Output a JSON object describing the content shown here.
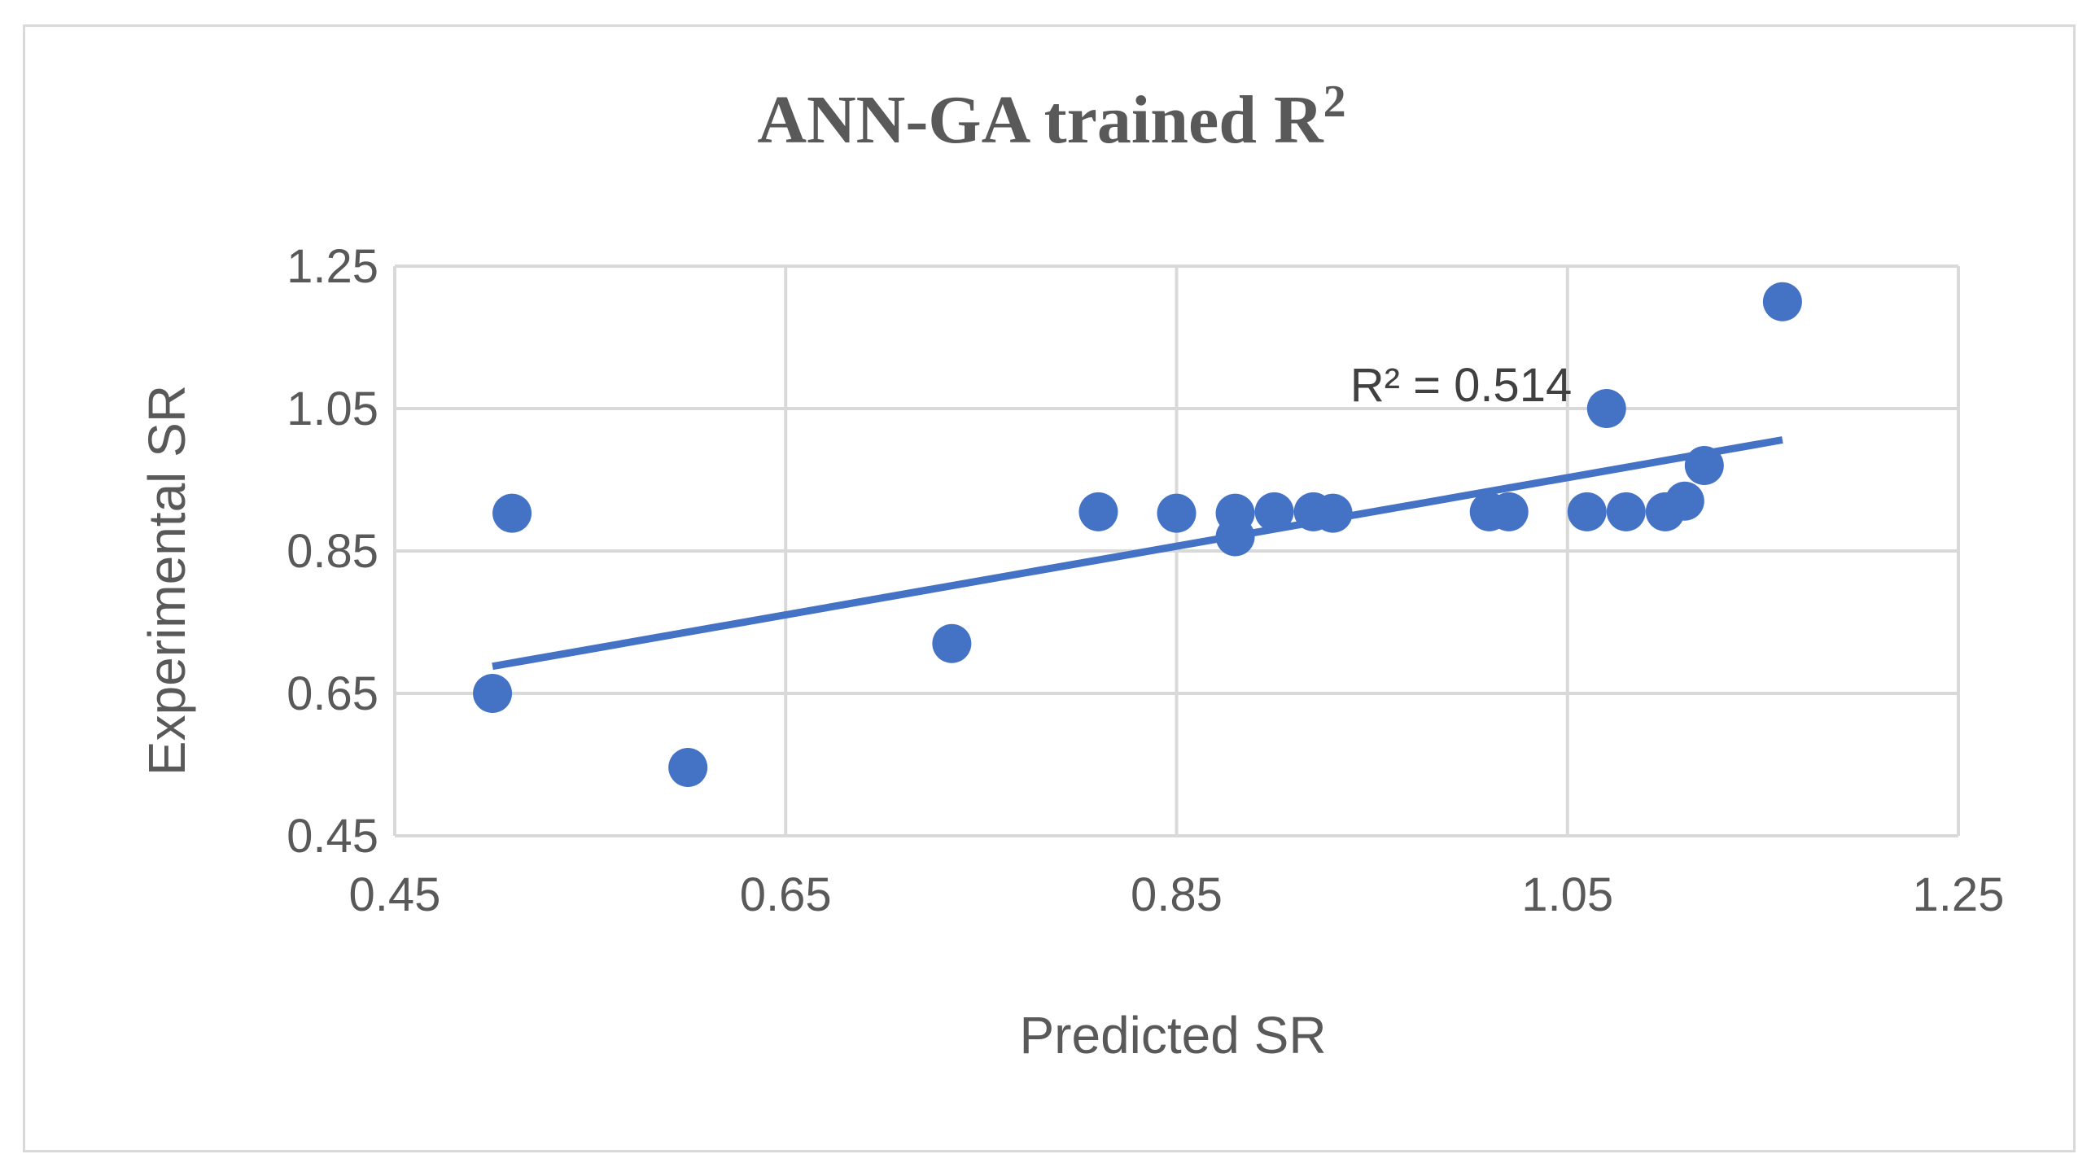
{
  "chart_data": {
    "type": "scatter",
    "title": "ANN-GA trained R",
    "title_superscript": "2",
    "xlabel": "Predicted SR",
    "ylabel": "Experimental SR",
    "xlim": [
      0.45,
      1.25
    ],
    "ylim": [
      0.45,
      1.25
    ],
    "xticks": [
      0.45,
      0.65,
      0.85,
      1.05,
      1.25
    ],
    "yticks": [
      0.45,
      0.65,
      0.85,
      1.05,
      1.25
    ],
    "xtick_labels": [
      "0.45",
      "0.65",
      "0.85",
      "1.05",
      "1.25"
    ],
    "ytick_labels": [
      "0.45",
      "0.65",
      "0.85",
      "1.05",
      "1.25"
    ],
    "grid": true,
    "legend": "none",
    "marker_color": "#4472c4",
    "grid_color": "#d9d9d9",
    "text_color": "#595959",
    "series": [
      {
        "name": "Experimental SR",
        "x": [
          0.5,
          0.51,
          0.6,
          0.735,
          0.81,
          0.85,
          0.88,
          0.88,
          0.9,
          0.92,
          0.93,
          1.01,
          1.02,
          1.06,
          1.08,
          1.1,
          1.11,
          1.12,
          1.07,
          1.16
        ],
        "y": [
          0.65,
          0.903,
          0.546,
          0.72,
          0.905,
          0.903,
          0.903,
          0.87,
          0.905,
          0.905,
          0.903,
          0.905,
          0.905,
          0.905,
          0.905,
          0.905,
          0.92,
          0.97,
          1.05,
          1.2
        ]
      }
    ],
    "trendline": {
      "type": "linear",
      "x": [
        0.5,
        1.16
      ],
      "y": [
        0.688,
        1.006
      ],
      "label": "R² = 0.514",
      "r_squared": 0.514
    }
  }
}
